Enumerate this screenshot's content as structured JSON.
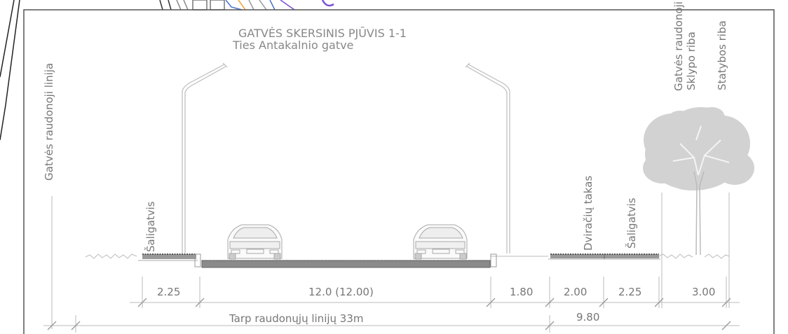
{
  "title": {
    "main": "GATVĖS SKERSINIS PJŪVIS 1-1",
    "sub": "Ties Antakalnio gatve"
  },
  "vertical_labels": {
    "left_red_line": "Gatvės raudonoji linija",
    "right_red_line": "Gatvės raudonoji",
    "plot_boundary": "Sklypo riba",
    "building_line": "Statybos riba",
    "sidewalk_left": "Šaligatvis",
    "bike_path": "Dviračių takas",
    "sidewalk_right": "Šaligatvis"
  },
  "dimensions": {
    "sidewalk_left": "2.25",
    "carriageway": "12.0 (12.00)",
    "verge": "1.80",
    "bike_path": "2.00",
    "sidewalk_right": "2.25",
    "green_strip": "3.00",
    "total_between_red_lines": "Tarp raudonųjų linijų 33m",
    "right_subtotal": "9.80"
  },
  "colors": {
    "frame": "#555555",
    "line": "#aaaaaa",
    "pavement": "#888888",
    "tree": "#cfcfcf",
    "map_purple": "#7a4fd6",
    "map_orange": "#f0a030",
    "map_blue": "#4a6fd0"
  },
  "icons": {
    "car": "car-icon",
    "street_lamp": "street-lamp-icon",
    "tree": "tree-icon"
  }
}
